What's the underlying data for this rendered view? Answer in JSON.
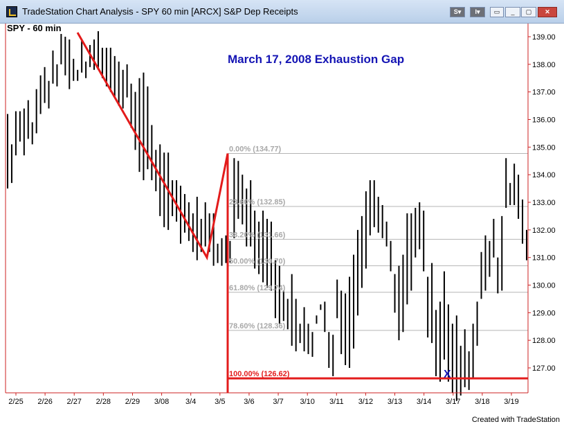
{
  "window": {
    "title": "TradeStation Chart Analysis - SPY 60 min [ARCX] S&P Dep Receipts",
    "symbol_menu_label": "S",
    "indicator_menu_label": "I",
    "minimize_label": "▭",
    "restore_label": "▢",
    "close_label": "✕"
  },
  "footer": {
    "text": "Created with TradeStation"
  },
  "chart_data": {
    "type": "bar",
    "title": "March 17, 2008 Exhaustion Gap",
    "symbol_label": "SPY - 60 min",
    "ylim": [
      126.0,
      139.4
    ],
    "y_ticks": [
      "139.00",
      "138.00",
      "137.00",
      "136.00",
      "135.00",
      "134.00",
      "133.00",
      "132.00",
      "131.00",
      "130.00",
      "129.00",
      "128.00",
      "127.00"
    ],
    "x_labels": [
      "2/25",
      "2/26",
      "2/27",
      "2/28",
      "2/29",
      "3/08",
      "3/4",
      "3/5",
      "3/6",
      "3/7",
      "3/10",
      "3/11",
      "3/12",
      "3/13",
      "3/14",
      "3/17",
      "3/18",
      "3/19"
    ],
    "bars_high": [
      136.2,
      135.1,
      136.3,
      136.3,
      136.4,
      136.7,
      135.9,
      137.1,
      137.6,
      137.9,
      137.4,
      138.5,
      138.0,
      139.1,
      139.0,
      138.9,
      138.2,
      137.8,
      138.9,
      138.1,
      138.7,
      138.9,
      139.2,
      138.6,
      138.6,
      138.6,
      138.3,
      138.1,
      137.8,
      138.0,
      137.3,
      137.0,
      137.5,
      137.7,
      137.2,
      135.8,
      134.9,
      135.1,
      134.8,
      134.8,
      133.8,
      133.8,
      133.6,
      133.3,
      133.0,
      132.6,
      133.2,
      132.4,
      133.0,
      132.6,
      132.6,
      131.5,
      131.7,
      131.8,
      131.6,
      134.6,
      134.5,
      134.0,
      133.5,
      133.8,
      132.7,
      132.3,
      132.7,
      132.4,
      132.3,
      130.9,
      130.7,
      129.8,
      129.5,
      130.4,
      129.5,
      128.6,
      129.2,
      128.6,
      128.3,
      128.6,
      129.1,
      129.4,
      128.3,
      128.2,
      130.2,
      129.8,
      129.7,
      130.3,
      131.1,
      132.0,
      132.5,
      133.4,
      133.8,
      133.8,
      133.2,
      132.9,
      132.3,
      131.6,
      130.4,
      130.7,
      131.1,
      132.6,
      132.6,
      132.8,
      133.0,
      132.7,
      130.3,
      130.8,
      129.1,
      129.4,
      130.5,
      129.3,
      128.6,
      128.9,
      127.8,
      128.4,
      127.6,
      128.6,
      129.4,
      131.2,
      131.8,
      131.6,
      132.4,
      131.0,
      132.5,
      134.6,
      133.7,
      134.4,
      134.0,
      133.1,
      132.0
    ],
    "bars_low": [
      133.5,
      133.7,
      134.7,
      135.2,
      134.7,
      135.3,
      135.1,
      135.5,
      136.2,
      136.6,
      136.4,
      137.3,
      137.2,
      138.0,
      137.6,
      137.1,
      137.4,
      137.4,
      137.7,
      137.5,
      137.9,
      137.8,
      137.8,
      137.5,
      137.2,
      137.0,
      136.8,
      136.5,
      136.4,
      136.8,
      135.7,
      134.9,
      134.1,
      133.8,
      134.2,
      133.8,
      133.4,
      132.5,
      132.1,
      132.0,
      132.5,
      132.3,
      131.5,
      131.9,
      131.6,
      131.2,
      130.9,
      131.2,
      131.4,
      131.2,
      130.7,
      130.8,
      130.7,
      130.8,
      130.8,
      131.7,
      132.4,
      132.2,
      131.4,
      131.4,
      130.6,
      130.4,
      130.1,
      129.9,
      129.8,
      128.8,
      128.6,
      128.7,
      128.4,
      127.8,
      127.6,
      127.9,
      127.6,
      127.5,
      127.4,
      128.9,
      129.3,
      128.3,
      127.0,
      126.7,
      128.8,
      127.5,
      127.1,
      127.0,
      127.7,
      128.9,
      129.9,
      130.6,
      131.8,
      132.1,
      131.9,
      131.7,
      131.4,
      130.5,
      129.0,
      128.0,
      128.3,
      129.3,
      129.8,
      131.0,
      131.3,
      130.5,
      128.1,
      127.9,
      126.7,
      126.5,
      127.3,
      126.5,
      126.1,
      125.8,
      126.0,
      126.3,
      126.2,
      126.6,
      127.8,
      129.5,
      129.8,
      130.3,
      131.0,
      129.7,
      129.8,
      132.8,
      132.9,
      132.9,
      132.4,
      131.5,
      130.9
    ],
    "fib_levels": [
      {
        "ratio": "0.00%",
        "value": 134.77,
        "label": "0.00% (134.77)"
      },
      {
        "ratio": "23.60%",
        "value": 132.85,
        "label": "23.60% (132.85)"
      },
      {
        "ratio": "38.20%",
        "value": 131.66,
        "label": "38.20% (131.66)"
      },
      {
        "ratio": "50.00%",
        "value": 130.7,
        "label": "50.00% (130.70)"
      },
      {
        "ratio": "61.80%",
        "value": 129.74,
        "label": "61.80% (129.74)"
      },
      {
        "ratio": "78.60%",
        "value": 128.36,
        "label": "78.60% (128.36)"
      },
      {
        "ratio": "100.00%",
        "value": 126.62,
        "label": "100.00% (126.62)"
      }
    ],
    "annotation_marker": "X",
    "colors": {
      "bars": "#000000",
      "trend": "#e31b1b",
      "fib": "#b4b4b4",
      "title": "#1414b4",
      "axis": "#cc2222",
      "marker": "#1414b4"
    }
  }
}
